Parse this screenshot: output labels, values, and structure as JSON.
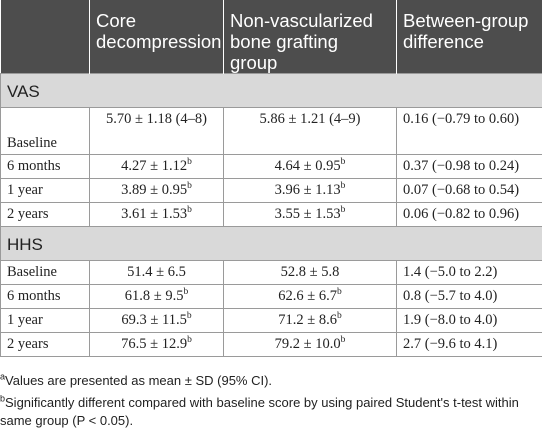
{
  "table": {
    "headers": [
      "",
      "Core decompression",
      "Non-vascularized bone grafting group",
      "Between-group difference"
    ],
    "sections": [
      {
        "title": "VAS",
        "rows": [
          {
            "label": "Baseline",
            "c1": "5.70 ± 1.18 (4–8)",
            "c1_sup": "",
            "c2": "5.86 ± 1.21 (4–9)",
            "c2_sup": "",
            "c3": "0.16 (−0.79 to 0.60)"
          },
          {
            "label": "6 months",
            "c1": "4.27 ± 1.12",
            "c1_sup": "b",
            "c2": "4.64 ± 0.95",
            "c2_sup": "b",
            "c3": "0.37 (−0.98 to 0.24)"
          },
          {
            "label": "1 year",
            "c1": "3.89 ± 0.95",
            "c1_sup": "b",
            "c2": "3.96 ± 1.13",
            "c2_sup": "b",
            "c3": "0.07 (−0.68 to 0.54)"
          },
          {
            "label": "2 years",
            "c1": "3.61 ± 1.53",
            "c1_sup": "b",
            "c2": "3.55 ± 1.53",
            "c2_sup": "b",
            "c3": "0.06 (−0.82 to 0.96)"
          }
        ]
      },
      {
        "title": "HHS",
        "rows": [
          {
            "label": "Baseline",
            "c1": "51.4 ± 6.5",
            "c1_sup": "",
            "c2": "52.8 ± 5.8",
            "c2_sup": "",
            "c3": "1.4 (−5.0 to 2.2)"
          },
          {
            "label": "6 months",
            "c1": "61.8 ± 9.5",
            "c1_sup": "b",
            "c2": "62.6 ± 6.7",
            "c2_sup": "b",
            "c3": "0.8 (−5.7 to 4.0)"
          },
          {
            "label": "1 year",
            "c1": "69.3 ± 11.5",
            "c1_sup": "b",
            "c2": "71.2 ± 8.6",
            "c2_sup": "b",
            "c3": "1.9 (−8.0 to 4.0)"
          },
          {
            "label": "2 years",
            "c1": "76.5 ± 12.9",
            "c1_sup": "b",
            "c2": "79.2 ± 10.0",
            "c2_sup": "b",
            "c3": "2.7 (−9.6 to 4.1)"
          }
        ]
      }
    ]
  },
  "footnotes": [
    {
      "mark": "a",
      "text": "Values are presented as mean ± SD (95% CI)."
    },
    {
      "mark": "b",
      "text": "Significantly different compared with baseline score by using paired Student's t-test within same group (P < 0.05)."
    }
  ]
}
